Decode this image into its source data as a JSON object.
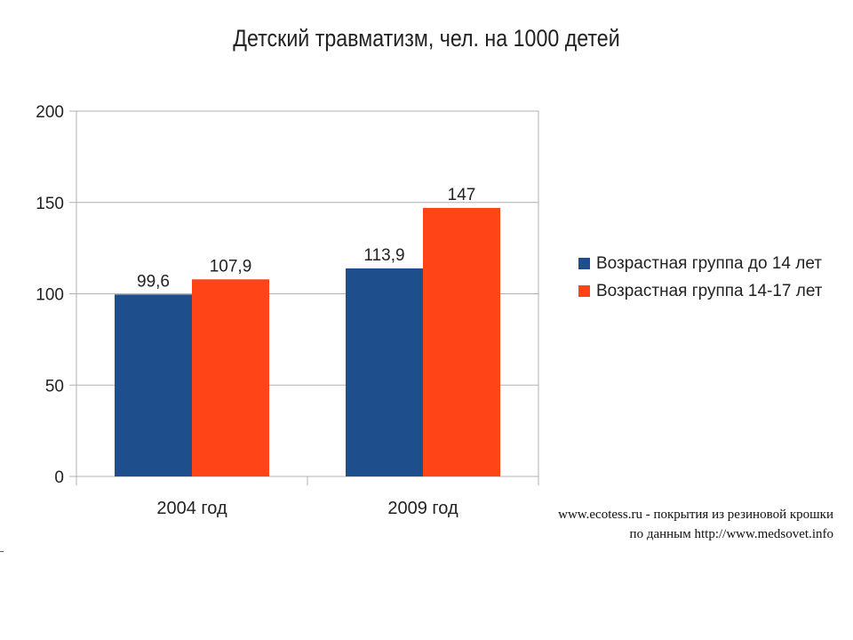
{
  "chart_data": {
    "type": "bar",
    "title": "Детский травматизм, чел. на 1000 детей",
    "categories": [
      "2004 год",
      "2009 год"
    ],
    "series": [
      {
        "name": "Возрастная группа до 14 лет",
        "color": "#1f4e8c",
        "values": [
          99.6,
          113.9
        ],
        "labels": [
          "99,6",
          "113,9"
        ]
      },
      {
        "name": "Возрастная группа 14-17 лет",
        "color": "#ff4517",
        "values": [
          107.9,
          147
        ],
        "labels": [
          "107,9",
          "147"
        ]
      }
    ],
    "ylim": [
      0,
      200
    ],
    "yticks": [
      0,
      50,
      100,
      150,
      200
    ],
    "grid": true,
    "legend_position": "right"
  },
  "credit": {
    "line1": "www.ecotess.ru - покрытия из резиновой крошки",
    "line2": "по данным http://www.medsovet.info"
  }
}
